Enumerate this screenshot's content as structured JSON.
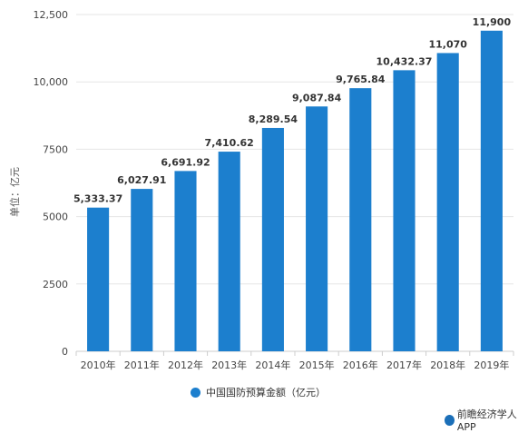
{
  "chart_data": {
    "type": "bar",
    "ylabel": "单位：亿元",
    "categories": [
      "2010年",
      "2011年",
      "2012年",
      "2013年",
      "2014年",
      "2015年",
      "2016年",
      "2017年",
      "2018年",
      "2019年"
    ],
    "series": [
      {
        "name": "中国国防预算金额（亿元）",
        "values": [
          5333.37,
          6027.91,
          6691.92,
          7410.62,
          8289.54,
          9087.84,
          9765.84,
          10432.37,
          11070,
          11900
        ],
        "data_labels": [
          "5,333.37",
          "6,027.91",
          "6,691.92",
          "7,410.62",
          "8,289.54",
          "9,087.84",
          "9,765.84",
          "10,432.37",
          "11,070",
          "11,900"
        ]
      }
    ],
    "y_ticks": [
      0,
      2500,
      5000,
      7500,
      10000,
      12500
    ],
    "y_tick_labels": [
      "0",
      "2500",
      "5000",
      "7500",
      "10,000",
      "12,500"
    ],
    "ylim": [
      0,
      12500
    ],
    "grid": true,
    "legend_position": "bottom-center",
    "colors": {
      "bar": "#1c7fce",
      "grid": "#e6e6e6",
      "axis": "#cccccc"
    }
  },
  "source": {
    "text": "前瞻经济学人APP"
  }
}
